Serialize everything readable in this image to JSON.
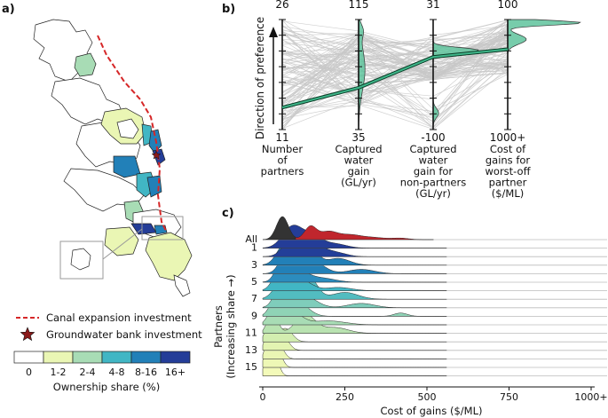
{
  "panels": {
    "a": "a)",
    "b": "b)",
    "c": "c)"
  },
  "map_legend": {
    "canal_label": "Canal expansion investment",
    "gw_label": "Groundwater bank investment",
    "share_title": "Ownership share (%)",
    "bins": [
      "0",
      "1-2",
      "2-4",
      "4-8",
      "8-16",
      "16+"
    ],
    "colors": [
      "#ffffff",
      "#eaf6b4",
      "#a8dcb5",
      "#41b6c4",
      "#2280b8",
      "#243d98"
    ],
    "canal_color": "#d62728",
    "gw_color": "#8b1a1a"
  },
  "chart_data": [
    {
      "type": "parallel_coordinates",
      "ylabel": "Direction of preference",
      "axes": [
        {
          "top": "26",
          "bottom": "11",
          "label": [
            "Number",
            "of",
            "partners"
          ]
        },
        {
          "top": "115",
          "bottom": "35",
          "label": [
            "Captured",
            "water",
            "gain",
            "(GL/yr)"
          ]
        },
        {
          "top": "31",
          "bottom": "-100",
          "label": [
            "Captured",
            "water",
            "gain for",
            "non-partners",
            "(GL/yr)"
          ]
        },
        {
          "top": "100",
          "bottom": "1000+",
          "label": [
            "Cost of",
            "gains for",
            "worst-off",
            "partner",
            "($/ML)"
          ]
        }
      ],
      "highlight_series": [
        0.2,
        0.38,
        0.66,
        0.73
      ],
      "density_color": "#5fc39c"
    },
    {
      "type": "ridgeline",
      "xlabel": "Cost of gains ($/ML)",
      "ylabel": "Partners",
      "ylabel2": "(Increasing share →)",
      "xlim": [
        0,
        1000
      ],
      "xticks": [
        "0",
        "250",
        "500",
        "750",
        "1000+"
      ],
      "xtick_values": [
        0,
        250,
        500,
        750,
        1000
      ],
      "rows": [
        {
          "label": "All",
          "color": "#333333",
          "color2": "#c0262d",
          "peaks": [
            [
              60,
              18,
              1.0
            ],
            [
              145,
              18,
              0.55
            ],
            [
              200,
              28,
              0.35
            ],
            [
              265,
              30,
              0.18
            ],
            [
              330,
              40,
              0.1
            ],
            [
              420,
              25,
              0.06
            ]
          ]
        },
        {
          "label": "1",
          "color": "#243d98",
          "peaks": [
            [
              90,
              30,
              1.0
            ],
            [
              150,
              30,
              0.55
            ],
            [
              220,
              35,
              0.2
            ]
          ]
        },
        {
          "label": "",
          "color": "#233f99",
          "peaks": [
            [
              95,
              28,
              1.0
            ],
            [
              160,
              35,
              0.5
            ],
            [
              230,
              30,
              0.15
            ]
          ]
        },
        {
          "label": "3",
          "color": "#2280b8",
          "peaks": [
            [
              70,
              25,
              1.0
            ],
            [
              140,
              25,
              0.85
            ],
            [
              230,
              35,
              0.3
            ]
          ]
        },
        {
          "label": "",
          "color": "#2280b8",
          "peaks": [
            [
              75,
              22,
              1.0
            ],
            [
              150,
              35,
              0.6
            ],
            [
              300,
              40,
              0.2
            ]
          ]
        },
        {
          "label": "5",
          "color": "#2c8cbe",
          "peaks": [
            [
              60,
              20,
              1.0
            ],
            [
              110,
              30,
              0.5
            ],
            [
              180,
              40,
              0.2
            ]
          ]
        },
        {
          "label": "",
          "color": "#41b6c4",
          "peaks": [
            [
              55,
              22,
              1.0
            ],
            [
              120,
              30,
              0.45
            ],
            [
              230,
              40,
              0.15
            ]
          ]
        },
        {
          "label": "7",
          "color": "#52bcc0",
          "peaks": [
            [
              60,
              25,
              0.8
            ],
            [
              140,
              25,
              1.0
            ],
            [
              250,
              40,
              0.3
            ]
          ]
        },
        {
          "label": "",
          "color": "#7fcdbb",
          "peaks": [
            [
              55,
              20,
              1.0
            ],
            [
              130,
              35,
              0.5
            ],
            [
              300,
              40,
              0.2
            ]
          ]
        },
        {
          "label": "9",
          "color": "#8fd3b6",
          "peaks": [
            [
              45,
              20,
              1.0
            ],
            [
              110,
              30,
              0.6
            ],
            [
              420,
              20,
              0.15
            ]
          ]
        },
        {
          "label": "",
          "color": "#a8dcb5",
          "peaks": [
            [
              40,
              20,
              1.0
            ],
            [
              90,
              30,
              0.6
            ],
            [
              200,
              50,
              0.2
            ]
          ]
        },
        {
          "label": "11",
          "color": "#b9e3b1",
          "peaks": [
            [
              30,
              15,
              1.0
            ],
            [
              130,
              30,
              0.8
            ],
            [
              220,
              40,
              0.25
            ]
          ]
        },
        {
          "label": "",
          "color": "#d3eeb0",
          "peaks": [
            [
              25,
              15,
              1.0
            ],
            [
              70,
              20,
              0.6
            ]
          ]
        },
        {
          "label": "13",
          "color": "#e3f4b2",
          "peaks": [
            [
              20,
              12,
              1.0
            ],
            [
              60,
              18,
              0.7
            ]
          ]
        },
        {
          "label": "",
          "color": "#eaf6b4",
          "peaks": [
            [
              18,
              10,
              1.0
            ],
            [
              50,
              15,
              0.6
            ]
          ]
        },
        {
          "label": "15",
          "color": "#eef8b6",
          "peaks": [
            [
              15,
              10,
              1.0
            ],
            [
              45,
              14,
              0.8
            ]
          ]
        },
        {
          "label": "",
          "color": "#f3fab9",
          "peaks": [
            [
              12,
              8,
              1.0
            ],
            [
              40,
              12,
              0.7
            ]
          ]
        }
      ]
    }
  ]
}
